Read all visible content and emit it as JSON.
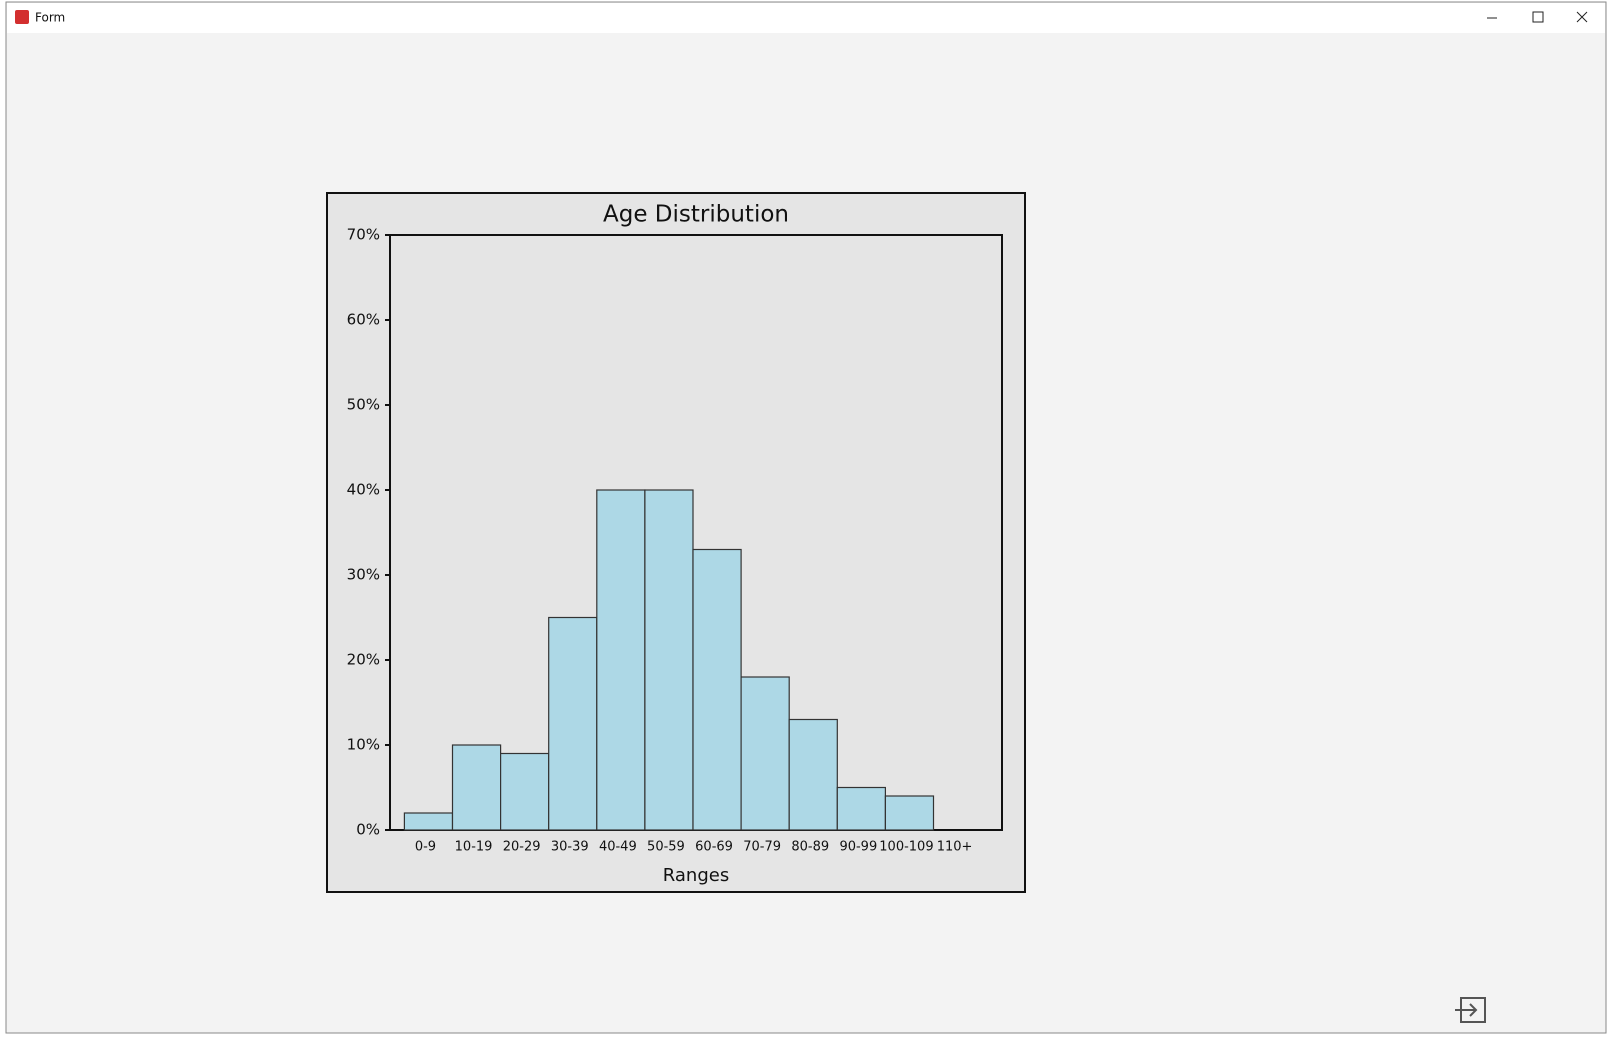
{
  "window": {
    "title": "Form"
  },
  "chart_data": {
    "type": "bar",
    "title": "Age Distribution",
    "x_label": "Ranges",
    "categories": [
      "0-9",
      "10-19",
      "20-29",
      "30-39",
      "40-49",
      "50-59",
      "60-69",
      "70-79",
      "80-89",
      "90-99",
      "100-109",
      "110+"
    ],
    "values": [
      2,
      10,
      9,
      25,
      40,
      40,
      33,
      18,
      13,
      5,
      4,
      0
    ],
    "color": "#add8e6",
    "ylim": [
      0,
      70
    ],
    "yticks": [
      {
        "value": 0,
        "label": "0%"
      },
      {
        "value": 10,
        "label": "10%"
      },
      {
        "value": 20,
        "label": "20%"
      },
      {
        "value": 30,
        "label": "30%"
      },
      {
        "value": 40,
        "label": "40%"
      },
      {
        "value": 50,
        "label": "50%"
      },
      {
        "value": 60,
        "label": "60%"
      },
      {
        "value": 70,
        "label": "70%"
      }
    ],
    "grid": false
  }
}
